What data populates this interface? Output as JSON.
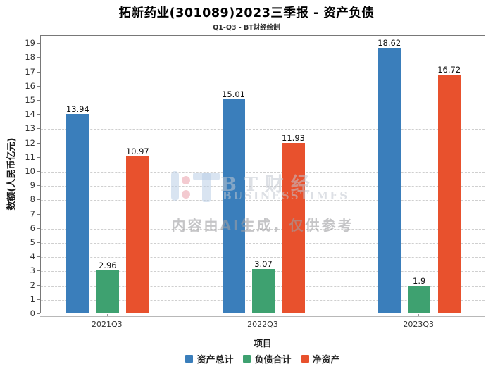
{
  "title": "拓新药业(301089)2023三季报 - 资产负债",
  "subtitle": "Q1-Q3 - BT财经绘制",
  "watermark": {
    "brand": "BT财经",
    "brand_sub": "BUSINESSTIMES",
    "disclaimer": "内容由AI生成，仅供参考"
  },
  "chart_data": {
    "type": "bar",
    "title": "拓新药业(301089)2023三季报 - 资产负债",
    "subtitle": "Q1-Q3 - BT财经绘制",
    "categories": [
      "2021Q3",
      "2022Q3",
      "2023Q3"
    ],
    "series": [
      {
        "name": "资产总计",
        "color": "#3A7EBB",
        "values": [
          13.94,
          15.01,
          18.62
        ]
      },
      {
        "name": "负债合计",
        "color": "#3EA170",
        "values": [
          2.96,
          3.07,
          1.9
        ]
      },
      {
        "name": "净资产",
        "color": "#E8512D",
        "values": [
          10.97,
          11.93,
          16.72
        ]
      }
    ],
    "value_labels": [
      [
        "13.94",
        "15.01",
        "18.62"
      ],
      [
        "2.96",
        "3.07",
        "1.9"
      ],
      [
        "10.97",
        "11.93",
        "16.72"
      ]
    ],
    "xlabel": "项目",
    "ylabel": "数额(人民币亿元)",
    "ylim": [
      0,
      19.55
    ],
    "yticks": [
      0,
      1,
      2,
      3,
      4,
      5,
      6,
      7,
      8,
      9,
      10,
      11,
      12,
      13,
      14,
      15,
      16,
      17,
      18,
      19
    ],
    "grid": "horizontal-dashed",
    "legend_position": "bottom",
    "colors": {
      "grid": "#cfcfcf",
      "spine": "#787878",
      "tick_label": "#333333",
      "value_label": "#111111"
    }
  }
}
